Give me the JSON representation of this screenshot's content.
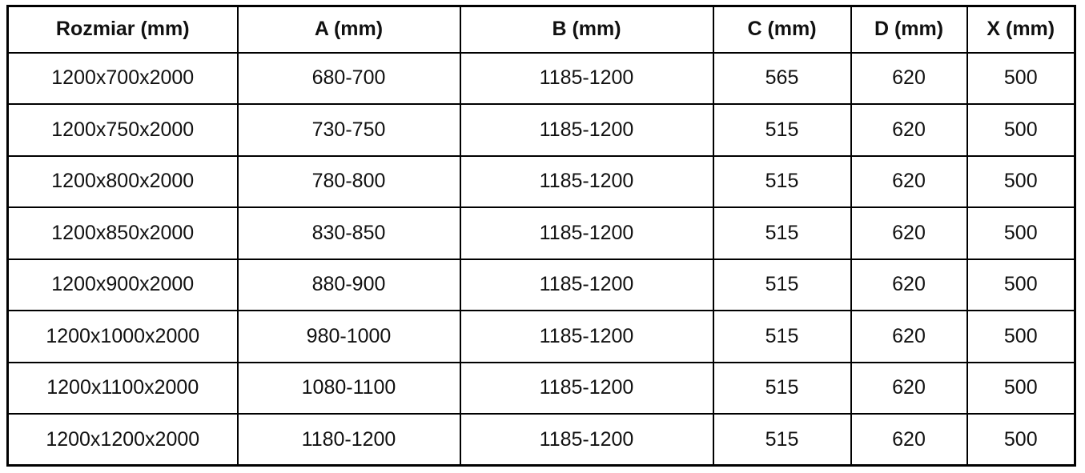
{
  "table": {
    "name": "shower-enclosure-size-specification",
    "columns": [
      "Rozmiar (mm)",
      "A (mm)",
      "B (mm)",
      "C (mm)",
      "D (mm)",
      "X (mm)"
    ],
    "column_keys": [
      "rozmiar",
      "a",
      "b",
      "c",
      "d",
      "x"
    ],
    "rows": [
      [
        "1200x700x2000",
        "680-700",
        "1185-1200",
        "565",
        "620",
        "500"
      ],
      [
        "1200x750x2000",
        "730-750",
        "1185-1200",
        "515",
        "620",
        "500"
      ],
      [
        "1200x800x2000",
        "780-800",
        "1185-1200",
        "515",
        "620",
        "500"
      ],
      [
        "1200x850x2000",
        "830-850",
        "1185-1200",
        "515",
        "620",
        "500"
      ],
      [
        "1200x900x2000",
        "880-900",
        "1185-1200",
        "515",
        "620",
        "500"
      ],
      [
        "1200x1000x2000",
        "980-1000",
        "1185-1200",
        "515",
        "620",
        "500"
      ],
      [
        "1200x1100x2000",
        "1080-1100",
        "1185-1200",
        "515",
        "620",
        "500"
      ],
      [
        "1200x1200x2000",
        "1180-1200",
        "1185-1200",
        "515",
        "620",
        "500"
      ]
    ],
    "colors": {
      "border": "#000000",
      "text": "#111111",
      "background": "#ffffff"
    }
  }
}
